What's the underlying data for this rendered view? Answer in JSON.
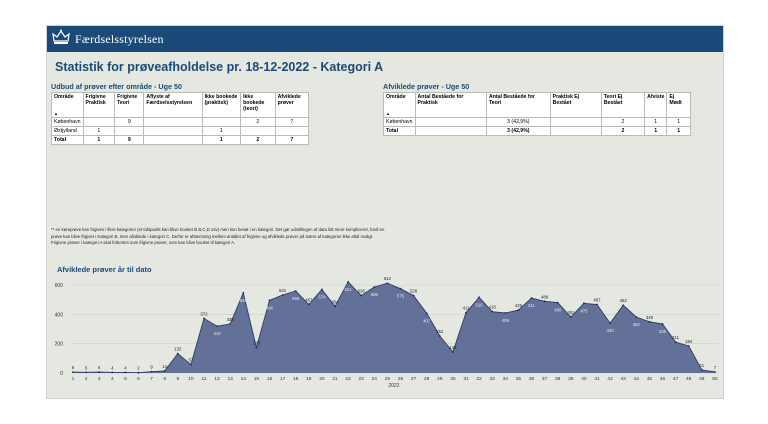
{
  "header": {
    "brand": "Færdselsstyrelsen"
  },
  "page_title": "Statistik for prøveafholdelse pr. 18-12-2022 - Kategori A",
  "udbud": {
    "title": "Udbud af prøver efter område - Uge 50",
    "columns": [
      "Område",
      "Frigivne Praktisk",
      "Frigivne Teori",
      "Aflyste af Færdselsstyrelsen",
      "Ikke bookede (praktisk)",
      "Ikke bookede (teori)",
      "Afviklede prøver"
    ],
    "sort_arrow": "▲",
    "rows": [
      [
        "København",
        "",
        "9",
        "",
        "",
        "2",
        "7"
      ],
      [
        "Østjylland",
        "1",
        "",
        "",
        "1",
        "",
        ""
      ],
      [
        "Total",
        "1",
        "9",
        "",
        "1",
        "2",
        "7"
      ]
    ]
  },
  "afviklede": {
    "title": "Afviklede prøver - Uge 50",
    "columns": [
      "Område",
      "Antal Beståede for Praktisk",
      "Antal Beståede for Teori",
      "Praktisk Ej Bestået",
      "Teori Ej Bestået",
      "Afviste",
      "Ej Mødt"
    ],
    "sort_arrow": "▲",
    "rows": [
      [
        "København",
        "",
        "3 (42,9%)",
        "",
        "2",
        "1",
        "1"
      ],
      [
        "Total",
        "",
        "3 (42,9%)",
        "",
        "2",
        "1",
        "1"
      ]
    ]
  },
  "note": "** en køreprøve kan frigives i flere kategorier (et tidspunkt kan blive booket til B,C,D osv) men kun besat i en kategori. Det gør udstillingen af data lidt mere kompliceret, fordi en prøve kan blive frigivet i Kategori B, men afviklede i kategori C. Derfor er afstemning mellem antallet af frigivne og afviklede prøver på tværs af kategorier ikke altid muligt. Frigivne prøver i kategori A skal forkortes som frigivne prøver, som kan blive booket til kategori A.",
  "chart_title": "Afviklede prøver år til dato",
  "chart_data": {
    "type": "area",
    "title": "Afviklede prøver år til dato",
    "xlabel": "2022",
    "ylabel": "",
    "x": [
      1,
      2,
      3,
      4,
      5,
      6,
      7,
      8,
      9,
      10,
      11,
      12,
      13,
      14,
      15,
      16,
      17,
      18,
      19,
      20,
      21,
      22,
      23,
      24,
      25,
      26,
      27,
      28,
      29,
      30,
      31,
      32,
      33,
      34,
      35,
      36,
      37,
      38,
      39,
      40,
      41,
      42,
      43,
      44,
      45,
      46,
      47,
      48,
      49,
      50
    ],
    "values": [
      6,
      5,
      6,
      4,
      4,
      2,
      9,
      14,
      132,
      57,
      372,
      319,
      335,
      546,
      173,
      496,
      531,
      559,
      467,
      570,
      454,
      621,
      528,
      586,
      612,
      575,
      528,
      407,
      252,
      143,
      411,
      516,
      418,
      409,
      429,
      511,
      489,
      480,
      381,
      475,
      467,
      340,
      462,
      382,
      349,
      335,
      211,
      184,
      21,
      7
    ],
    "ylim": [
      0,
      600
    ],
    "yticks": [
      "0",
      "200",
      "400",
      "600"
    ],
    "grid": true,
    "fill_color": "#5c6a94",
    "line_color": "#2c3c66"
  },
  "colors": {
    "brand": "#1b4a78",
    "background": "#e5e8e0"
  },
  "icons": {
    "logo": "crown-icon"
  }
}
